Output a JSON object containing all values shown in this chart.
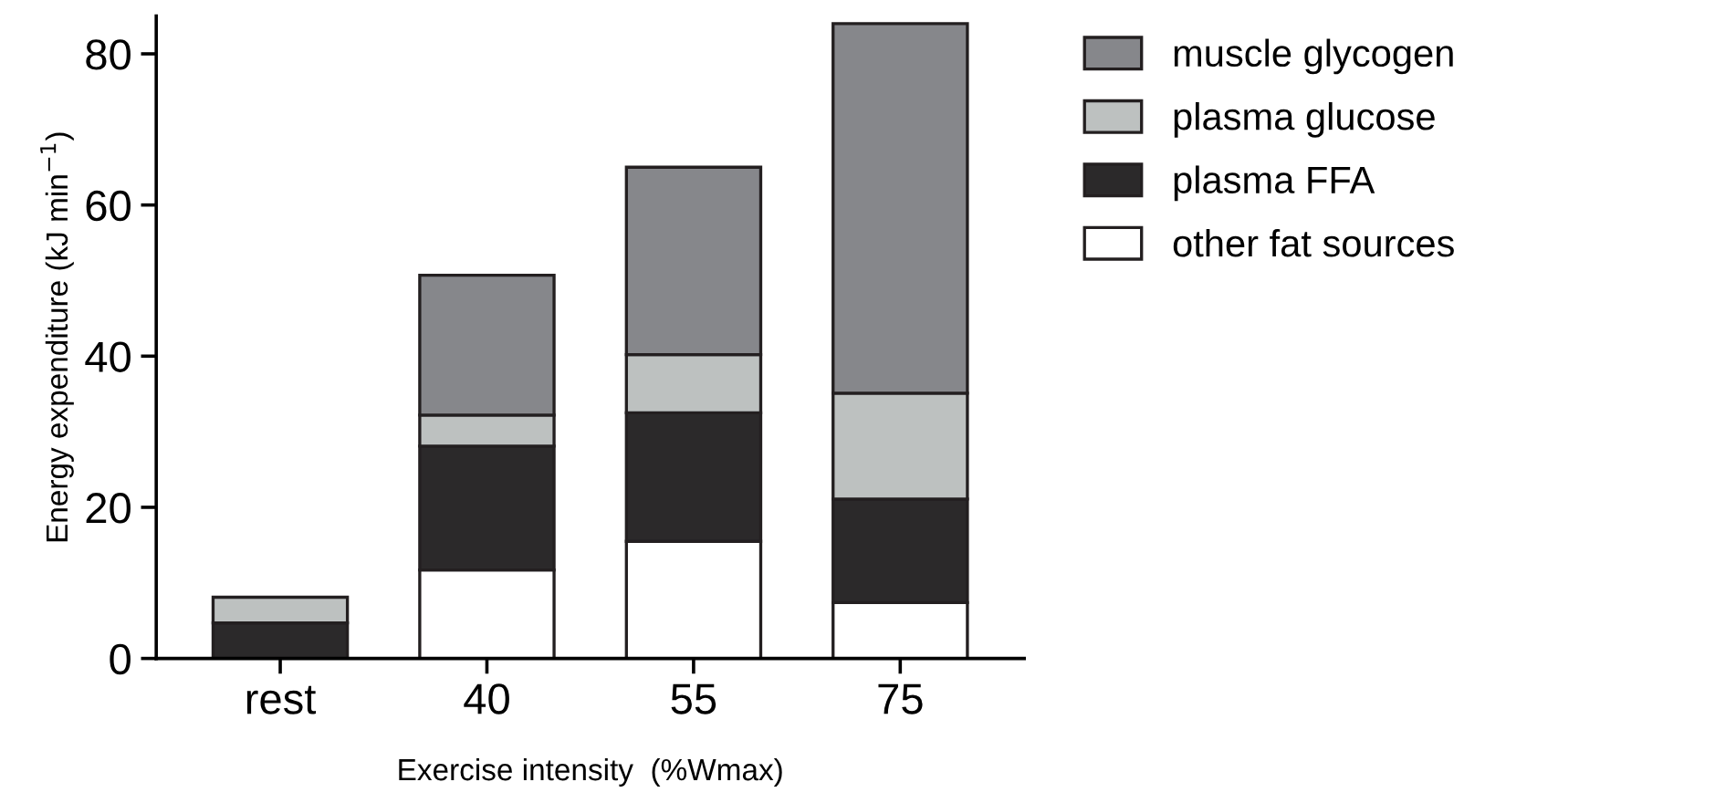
{
  "chart_data": {
    "type": "bar",
    "stacked": true,
    "xlabel": "Exercise intensity  (%Wmax)",
    "ylabel": "Energy expenditure (kJ min$^{−1}$)",
    "categories": [
      "rest",
      "40",
      "55",
      "75"
    ],
    "series": [
      {
        "name": "other fat sources",
        "color": "#ffffff",
        "values": [
          0,
          11.7,
          15.5,
          7.4
        ]
      },
      {
        "name": "plasma FFA",
        "color": "#2b292a",
        "values": [
          4.7,
          16.4,
          17.0,
          13.7
        ]
      },
      {
        "name": "plasma glucose",
        "color": "#bdc1c0",
        "values": [
          3.4,
          4.1,
          7.7,
          14.0
        ]
      },
      {
        "name": "muscle glycogen",
        "color": "#86878b",
        "values": [
          0,
          18.5,
          24.8,
          48.9
        ]
      }
    ],
    "ylim": [
      0,
      85
    ],
    "yticks": [
      0,
      20,
      40,
      60,
      80
    ],
    "grid": false,
    "legend": "right"
  }
}
